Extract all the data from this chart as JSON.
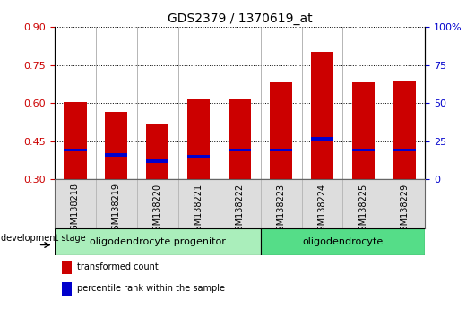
{
  "title": "GDS2379 / 1370619_at",
  "samples": [
    "GSM138218",
    "GSM138219",
    "GSM138220",
    "GSM138221",
    "GSM138222",
    "GSM138223",
    "GSM138224",
    "GSM138225",
    "GSM138229"
  ],
  "transformed_count": [
    0.605,
    0.565,
    0.52,
    0.615,
    0.615,
    0.68,
    0.8,
    0.68,
    0.685
  ],
  "percentile_rank": [
    0.415,
    0.395,
    0.37,
    0.39,
    0.415,
    0.415,
    0.46,
    0.415,
    0.415
  ],
  "ylim_left": [
    0.3,
    0.9
  ],
  "ylim_right": [
    0,
    100
  ],
  "yticks_left": [
    0.3,
    0.45,
    0.6,
    0.75,
    0.9
  ],
  "yticks_right": [
    0,
    25,
    50,
    75,
    100
  ],
  "bar_color": "#cc0000",
  "percentile_color": "#0000cc",
  "bar_width": 0.55,
  "groups": [
    {
      "label": "oligodendrocyte progenitor",
      "n_samples": 5,
      "color": "#aaeebb"
    },
    {
      "label": "oligodendrocyte",
      "n_samples": 4,
      "color": "#55dd88"
    }
  ],
  "legend_bar_label": "transformed count",
  "legend_pct_label": "percentile rank within the sample",
  "dev_stage_label": "development stage",
  "tick_label_color_left": "#cc0000",
  "tick_label_color_right": "#0000cc",
  "grid_color": "#000000",
  "divider_color": "#999999",
  "sample_bg_color": "#dddddd",
  "right_yticklabels": [
    "0",
    "25",
    "50",
    "75",
    "100%"
  ]
}
